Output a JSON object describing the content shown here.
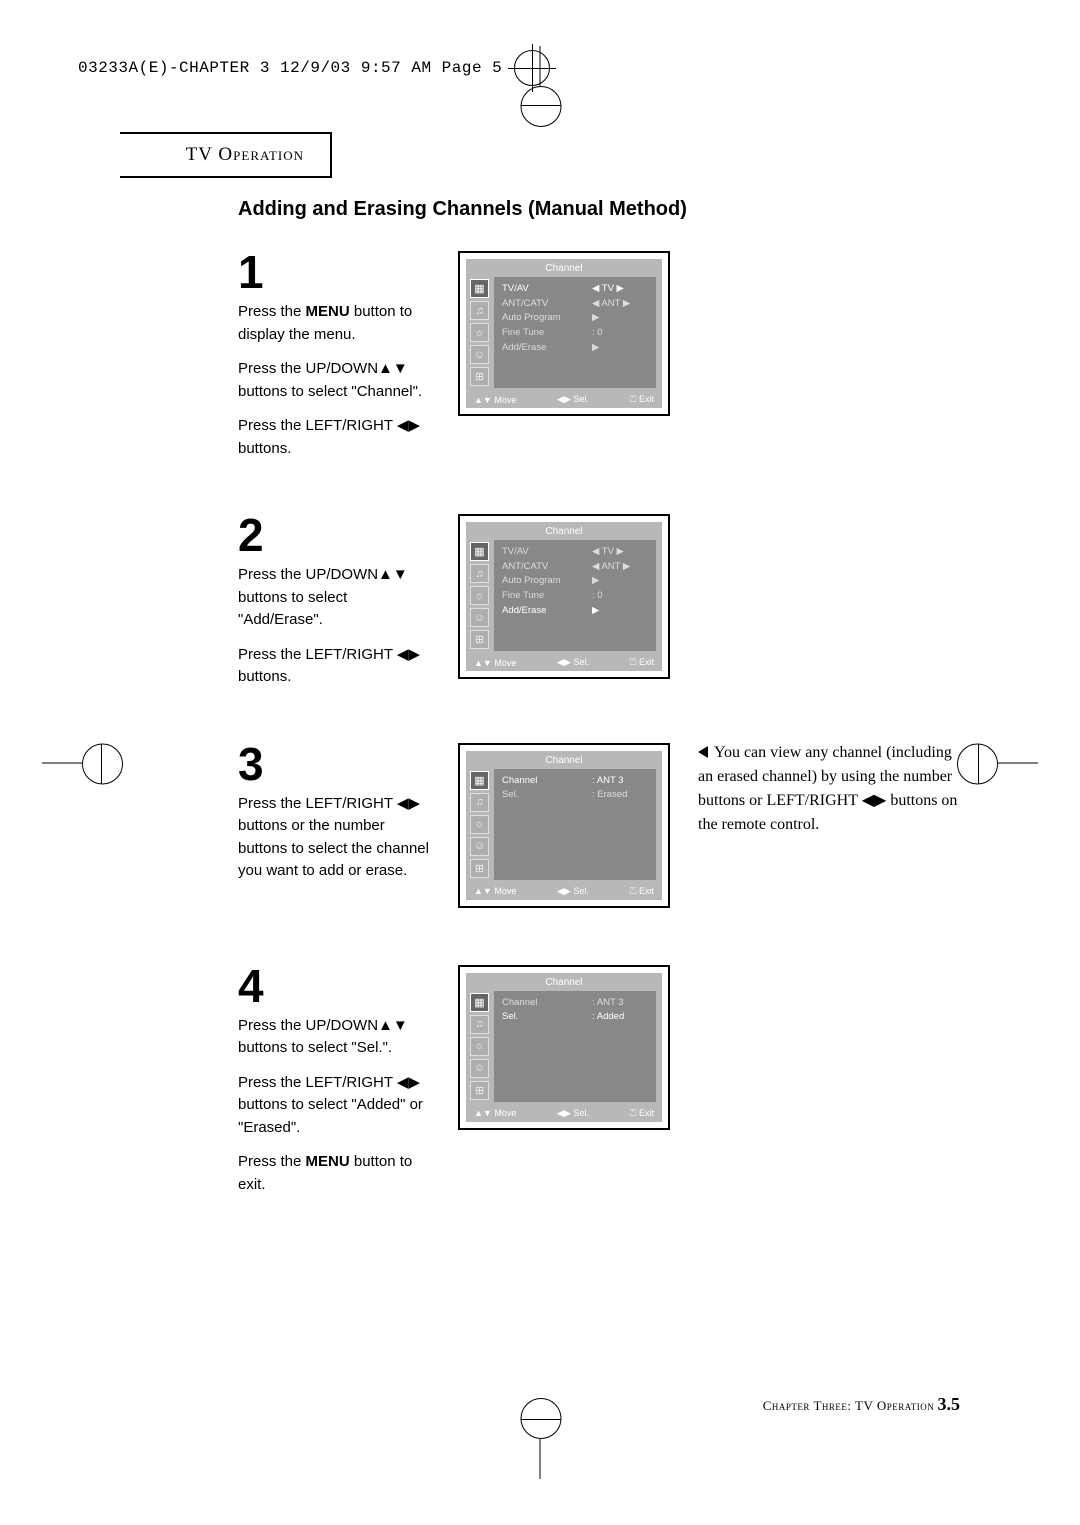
{
  "print_header": "03233A(E)-CHAPTER 3  12/9/03  9:57 AM  Page 5",
  "section_title": "TV Operation",
  "heading": "Adding and Erasing Channels (Manual Method)",
  "steps": [
    {
      "num": "1",
      "paragraphs": [
        "Press the <b>MENU</b> button to display the menu.",
        "Press the UP/DOWN▲▼ buttons to select \"Channel\".",
        "Press the LEFT/RIGHT ◀▶ buttons."
      ],
      "osd": {
        "title": "Channel",
        "highlight": 0,
        "rows": [
          {
            "label": "TV/AV",
            "val": "◀ TV ▶"
          },
          {
            "label": "ANT/CATV",
            "val": "◀ ANT ▶"
          },
          {
            "label": "Auto Program",
            "val": "▶"
          },
          {
            "label": "Fine Tune",
            "val": ":   0"
          },
          {
            "label": "Add/Erase",
            "val": "▶"
          }
        ],
        "footer": {
          "move": "▲▼ Move",
          "sel": "◀▶ Sel.",
          "exit": "⏍ Exit"
        }
      }
    },
    {
      "num": "2",
      "paragraphs": [
        "Press the UP/DOWN▲▼ buttons to select \"Add/Erase\".",
        "Press the LEFT/RIGHT ◀▶ buttons."
      ],
      "osd": {
        "title": "Channel",
        "highlight": 4,
        "rows": [
          {
            "label": "TV/AV",
            "val": "◀ TV ▶"
          },
          {
            "label": "ANT/CATV",
            "val": "◀ ANT ▶"
          },
          {
            "label": "Auto Program",
            "val": "▶"
          },
          {
            "label": "Fine Tune",
            "val": ":   0"
          },
          {
            "label": "Add/Erase",
            "val": "▶"
          }
        ],
        "footer": {
          "move": "▲▼ Move",
          "sel": "◀▶ Sel.",
          "exit": "⏍ Exit"
        }
      }
    },
    {
      "num": "3",
      "paragraphs": [
        "Press the LEFT/RIGHT ◀▶ buttons or  the number buttons to select the channel you want to add or erase."
      ],
      "osd": {
        "title": "Channel",
        "highlight": 0,
        "rows": [
          {
            "label": "Channel",
            "val": ":  ANT  3"
          },
          {
            "label": "Sel.",
            "val": ":  Erased"
          }
        ],
        "footer": {
          "move": "▲▼ Move",
          "sel": "◀▶ Sel.",
          "exit": "⏍ Exit"
        }
      },
      "side_note": "You can view any channel (including an erased channel) by using the number buttons or LEFT/RIGHT ◀▶ buttons on the remote control."
    },
    {
      "num": "4",
      "paragraphs": [
        "Press the UP/DOWN▲▼ buttons to select \"Sel.\".",
        "Press the LEFT/RIGHT ◀▶ buttons to select \"Added\" or \"Erased\".",
        "Press the <b>MENU</b> button to exit."
      ],
      "osd": {
        "title": "Channel",
        "highlight": 1,
        "rows": [
          {
            "label": "Channel",
            "val": ":  ANT  3"
          },
          {
            "label": "Sel.",
            "val": ":  Added"
          }
        ],
        "footer": {
          "move": "▲▼ Move",
          "sel": "◀▶ Sel.",
          "exit": "⏍ Exit"
        }
      }
    }
  ],
  "footer": {
    "chapter": "Chapter Three:  TV Operation",
    "page": "3.5"
  },
  "colors": {
    "osd_outer": "#b8b8b8",
    "osd_inner": "#888888",
    "text_dim": "#dddddd",
    "text_hl": "#ffffff"
  }
}
